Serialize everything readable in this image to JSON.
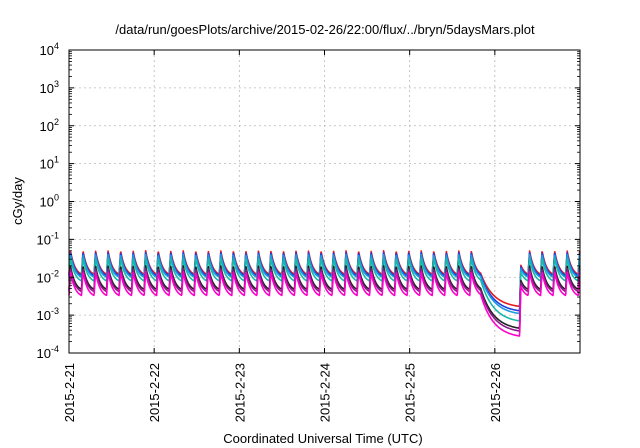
{
  "chart_data": {
    "type": "line",
    "title": "/data/run/goesPlots/archive/2015-02-26/22:00/flux/../bryn/5daysMars.plot",
    "xlabel": "Coordinated Universal Time (UTC)",
    "ylabel": "cGy/day",
    "x_range": [
      "2015-2-21",
      "2015-2-27"
    ],
    "x_ticks": [
      "2015-2-21",
      "2015-2-22",
      "2015-2-23",
      "2015-2-24",
      "2015-2-25",
      "2015-2-26"
    ],
    "y_scale": "log",
    "y_range": [
      0.0001,
      10000
    ],
    "y_ticks": [
      {
        "base": "10",
        "exp": "-4",
        "value": 0.0001
      },
      {
        "base": "10",
        "exp": "-3",
        "value": 0.001
      },
      {
        "base": "10",
        "exp": "-2",
        "value": 0.01
      },
      {
        "base": "10",
        "exp": "-1",
        "value": 0.1
      },
      {
        "base": "10",
        "exp": "0",
        "value": 1
      },
      {
        "base": "10",
        "exp": "1",
        "value": 10
      },
      {
        "base": "10",
        "exp": "2",
        "value": 100
      },
      {
        "base": "10",
        "exp": "3",
        "value": 1000
      },
      {
        "base": "10",
        "exp": "4",
        "value": 10000
      }
    ],
    "grid": true,
    "legend": "none",
    "cycles_per_day": 6.8,
    "pattern": "sawtooth: sharp rise then gradual decay each cycle; steady decline 2015-2-25 20:00 to 2015-2-26 07:00, then recovery",
    "decline_start": "2015-2-25 20:00",
    "decline_end": "2015-2-26 07:00",
    "series": [
      {
        "color": "#e41a1c",
        "peak": 0.05,
        "trough": 0.012,
        "decline_min": 0.0017
      },
      {
        "color": "#1f3fe0",
        "peak": 0.045,
        "trough": 0.011,
        "decline_min": 0.0013
      },
      {
        "color": "#1a9ae0",
        "peak": 0.04,
        "trough": 0.01,
        "decline_min": 0.0011
      },
      {
        "color": "#18b9a8",
        "peak": 0.032,
        "trough": 0.008,
        "decline_min": 0.0007
      },
      {
        "color": "#222222",
        "peak": 0.02,
        "trough": 0.0048,
        "decline_min": 0.00045
      },
      {
        "color": "#8a1a8a",
        "peak": 0.017,
        "trough": 0.0042,
        "decline_min": 0.00038
      },
      {
        "color": "#ff00cc",
        "peak": 0.014,
        "trough": 0.0033,
        "decline_min": 0.00028
      }
    ]
  }
}
